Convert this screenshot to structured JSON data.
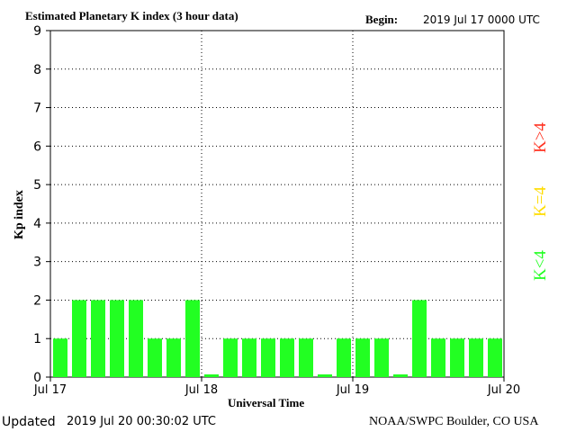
{
  "header": {
    "title": "Estimated Planetary K index (3 hour data)",
    "begin_label": "Begin:",
    "begin_value": "2019 Jul 17 0000 UTC"
  },
  "footer": {
    "updated_label": "Updated",
    "updated_value": "2019 Jul 20 00:30:02 UTC",
    "source": "NOAA/SWPC Boulder, CO USA"
  },
  "legend": {
    "high": "K>4",
    "equal": "K=4",
    "low": "K<4"
  },
  "colors": {
    "low": "#22ff22",
    "equal": "#ffdd00",
    "high": "#ff3322"
  },
  "chart_data": {
    "type": "bar",
    "title": "Estimated Planetary K index (3 hour data)",
    "xlabel": "Universal Time",
    "ylabel": "Kp index",
    "ylim": [
      0,
      9
    ],
    "yticks": [
      "0",
      "1",
      "2",
      "3",
      "4",
      "5",
      "6",
      "7",
      "8",
      "9"
    ],
    "xticks": [
      "Jul 17",
      "Jul 18",
      "Jul 19",
      "Jul 20"
    ],
    "grid": true,
    "values": [
      1,
      2,
      2,
      2,
      2,
      1,
      1,
      2,
      0.07,
      1,
      1,
      1,
      1,
      1,
      0.07,
      1,
      1,
      1,
      0.07,
      2,
      1,
      1,
      1,
      1
    ]
  }
}
